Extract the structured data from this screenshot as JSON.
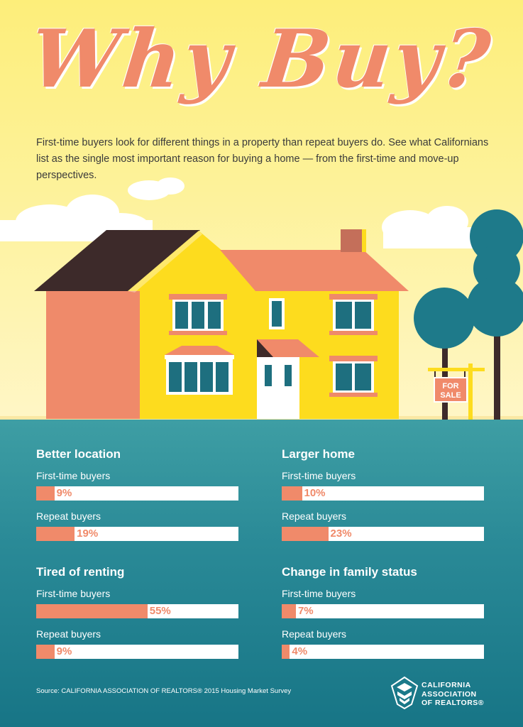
{
  "title": "Why Buy?",
  "intro": "First-time buyers look for different things in a property than repeat buyers do. See what Californians list as the single most important reason for buying a home — from the first-time and move-up perspectives.",
  "sign": {
    "line1": "FOR",
    "line2": "SALE"
  },
  "colors": {
    "accent": "#f08a6a",
    "panel": "#1f7f8c",
    "house": "#fddc1e",
    "roof": "#3d2a2a"
  },
  "chart_data": [
    {
      "type": "bar",
      "title": "Better location",
      "categories": [
        "First-time buyers",
        "Repeat buyers"
      ],
      "values": [
        9,
        19
      ],
      "unit": "%",
      "ylim": [
        0,
        100
      ]
    },
    {
      "type": "bar",
      "title": "Larger home",
      "categories": [
        "First-time buyers",
        "Repeat buyers"
      ],
      "values": [
        10,
        23
      ],
      "unit": "%",
      "ylim": [
        0,
        100
      ]
    },
    {
      "type": "bar",
      "title": "Tired of renting",
      "categories": [
        "First-time buyers",
        "Repeat buyers"
      ],
      "values": [
        55,
        9
      ],
      "unit": "%",
      "ylim": [
        0,
        100
      ]
    },
    {
      "type": "bar",
      "title": "Change in family status",
      "categories": [
        "First-time buyers",
        "Repeat buyers"
      ],
      "values": [
        7,
        4
      ],
      "unit": "%",
      "ylim": [
        0,
        100
      ]
    }
  ],
  "source": "Source: CALIFORNIA ASSOCIATION OF REALTORS® 2015 Housing Market Survey",
  "logo": {
    "line1": "CALIFORNIA",
    "line2": "ASSOCIATION",
    "line3": "OF REALTORS®"
  }
}
